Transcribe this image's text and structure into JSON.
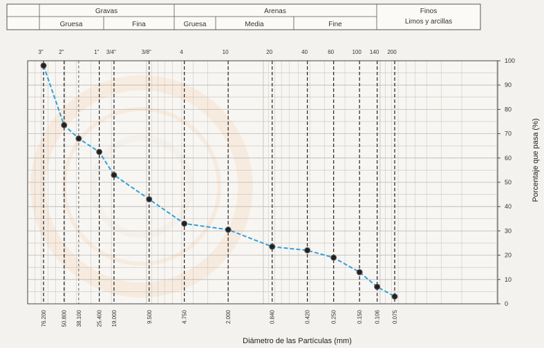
{
  "header": {
    "gravas": "Gravas",
    "gruesa_grava": "Gruesa",
    "fina_grava": "Fina",
    "arenas": "Arenas",
    "gruesa_arena": "Gruesa",
    "media_arena": "Media",
    "fina_arena": "Fine",
    "finos": "Finos",
    "limos": "Limos y arcillas"
  },
  "chart_data": {
    "type": "line",
    "xscale": "log-reversed",
    "xlabel": "Diámetro de las Partículas (mm)",
    "ylabel": "Porcentaje que pasa (%)",
    "ylim": [
      0,
      100
    ],
    "yticks": [
      "0",
      "10",
      "20",
      "30",
      "40",
      "50",
      "60",
      "70",
      "80",
      "90",
      "100"
    ],
    "sieves": [
      {
        "label": "3\"",
        "mm": "76.200"
      },
      {
        "label": "2\"",
        "mm": "50.800"
      },
      {
        "label": "1\"",
        "mm": "25.400"
      },
      {
        "label": "3/4\"",
        "mm": "19.000"
      },
      {
        "label": "3/8\"",
        "mm": "9.500"
      },
      {
        "label": "4",
        "mm": "4.750"
      },
      {
        "label": "10",
        "mm": "2.000"
      },
      {
        "label": "20",
        "mm": "0.840"
      },
      {
        "label": "40",
        "mm": "0.420"
      },
      {
        "label": "60",
        "mm": "0.250"
      },
      {
        "label": "100",
        "mm": "0.150"
      },
      {
        "label": "140",
        "mm": "0.106"
      },
      {
        "label": "200",
        "mm": "0.075"
      }
    ],
    "extra_xticks": [
      "38.100"
    ],
    "series": [
      {
        "color": "#2f9fd8",
        "x": [
          76.2,
          50.8,
          38.1,
          25.4,
          19.0,
          9.5,
          4.75,
          2.0,
          0.84,
          0.42,
          0.25,
          0.15,
          0.106,
          0.075
        ],
        "y": [
          98,
          73.5,
          68,
          62.5,
          53,
          43,
          33,
          30.5,
          23.5,
          22,
          19,
          13,
          7,
          3
        ]
      }
    ]
  }
}
